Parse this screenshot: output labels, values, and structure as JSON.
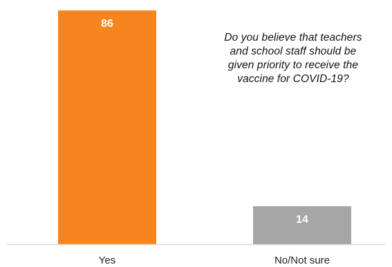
{
  "chart_data": {
    "type": "bar",
    "categories": [
      "Yes",
      "No/Not sure"
    ],
    "values": [
      86,
      14
    ],
    "data_labels": [
      "86",
      "14"
    ],
    "colors": [
      "#f7851f",
      "#a6a6a6"
    ],
    "axis_line_color": "#d9d9d9",
    "title": "",
    "xlabel": "",
    "ylabel": "",
    "ylim": [
      0,
      100
    ],
    "grid": false,
    "legend": "none"
  },
  "annotation": {
    "lines": [
      "Do you believe that teachers",
      "and school staff should be",
      "given priority to receive the",
      "vaccine for COVID-19?"
    ]
  }
}
